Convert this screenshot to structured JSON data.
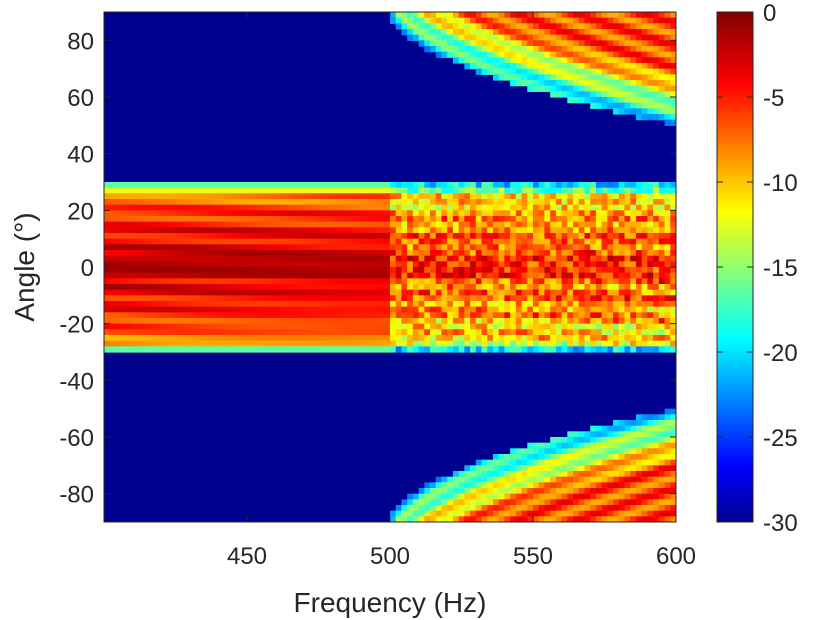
{
  "chart_data": {
    "type": "heatmap",
    "title": "",
    "xlabel": "Frequency (Hz)",
    "ylabel": "Angle (°)",
    "xlim": [
      400,
      600
    ],
    "ylim": [
      -90,
      90
    ],
    "x_ticks": [
      450,
      500,
      550,
      600
    ],
    "y_ticks": [
      80,
      60,
      40,
      20,
      0,
      -20,
      -40,
      -60,
      -80
    ],
    "colorbar": {
      "colormap": "jet",
      "range": [
        -30,
        0
      ],
      "ticks": [
        0,
        -5,
        -10,
        -15,
        -20,
        -25,
        -30
      ]
    },
    "beam_pattern": {
      "description_units": "dB vs. frequency (Hz) and angle (degrees)",
      "main_lobe_center_angle": 0,
      "main_lobe_half_width_deg": 30,
      "floor_level_db": -30,
      "grating_lobe_onset_hz": 500,
      "grating_lobe_edge_at_600hz_deg": 50
    }
  }
}
